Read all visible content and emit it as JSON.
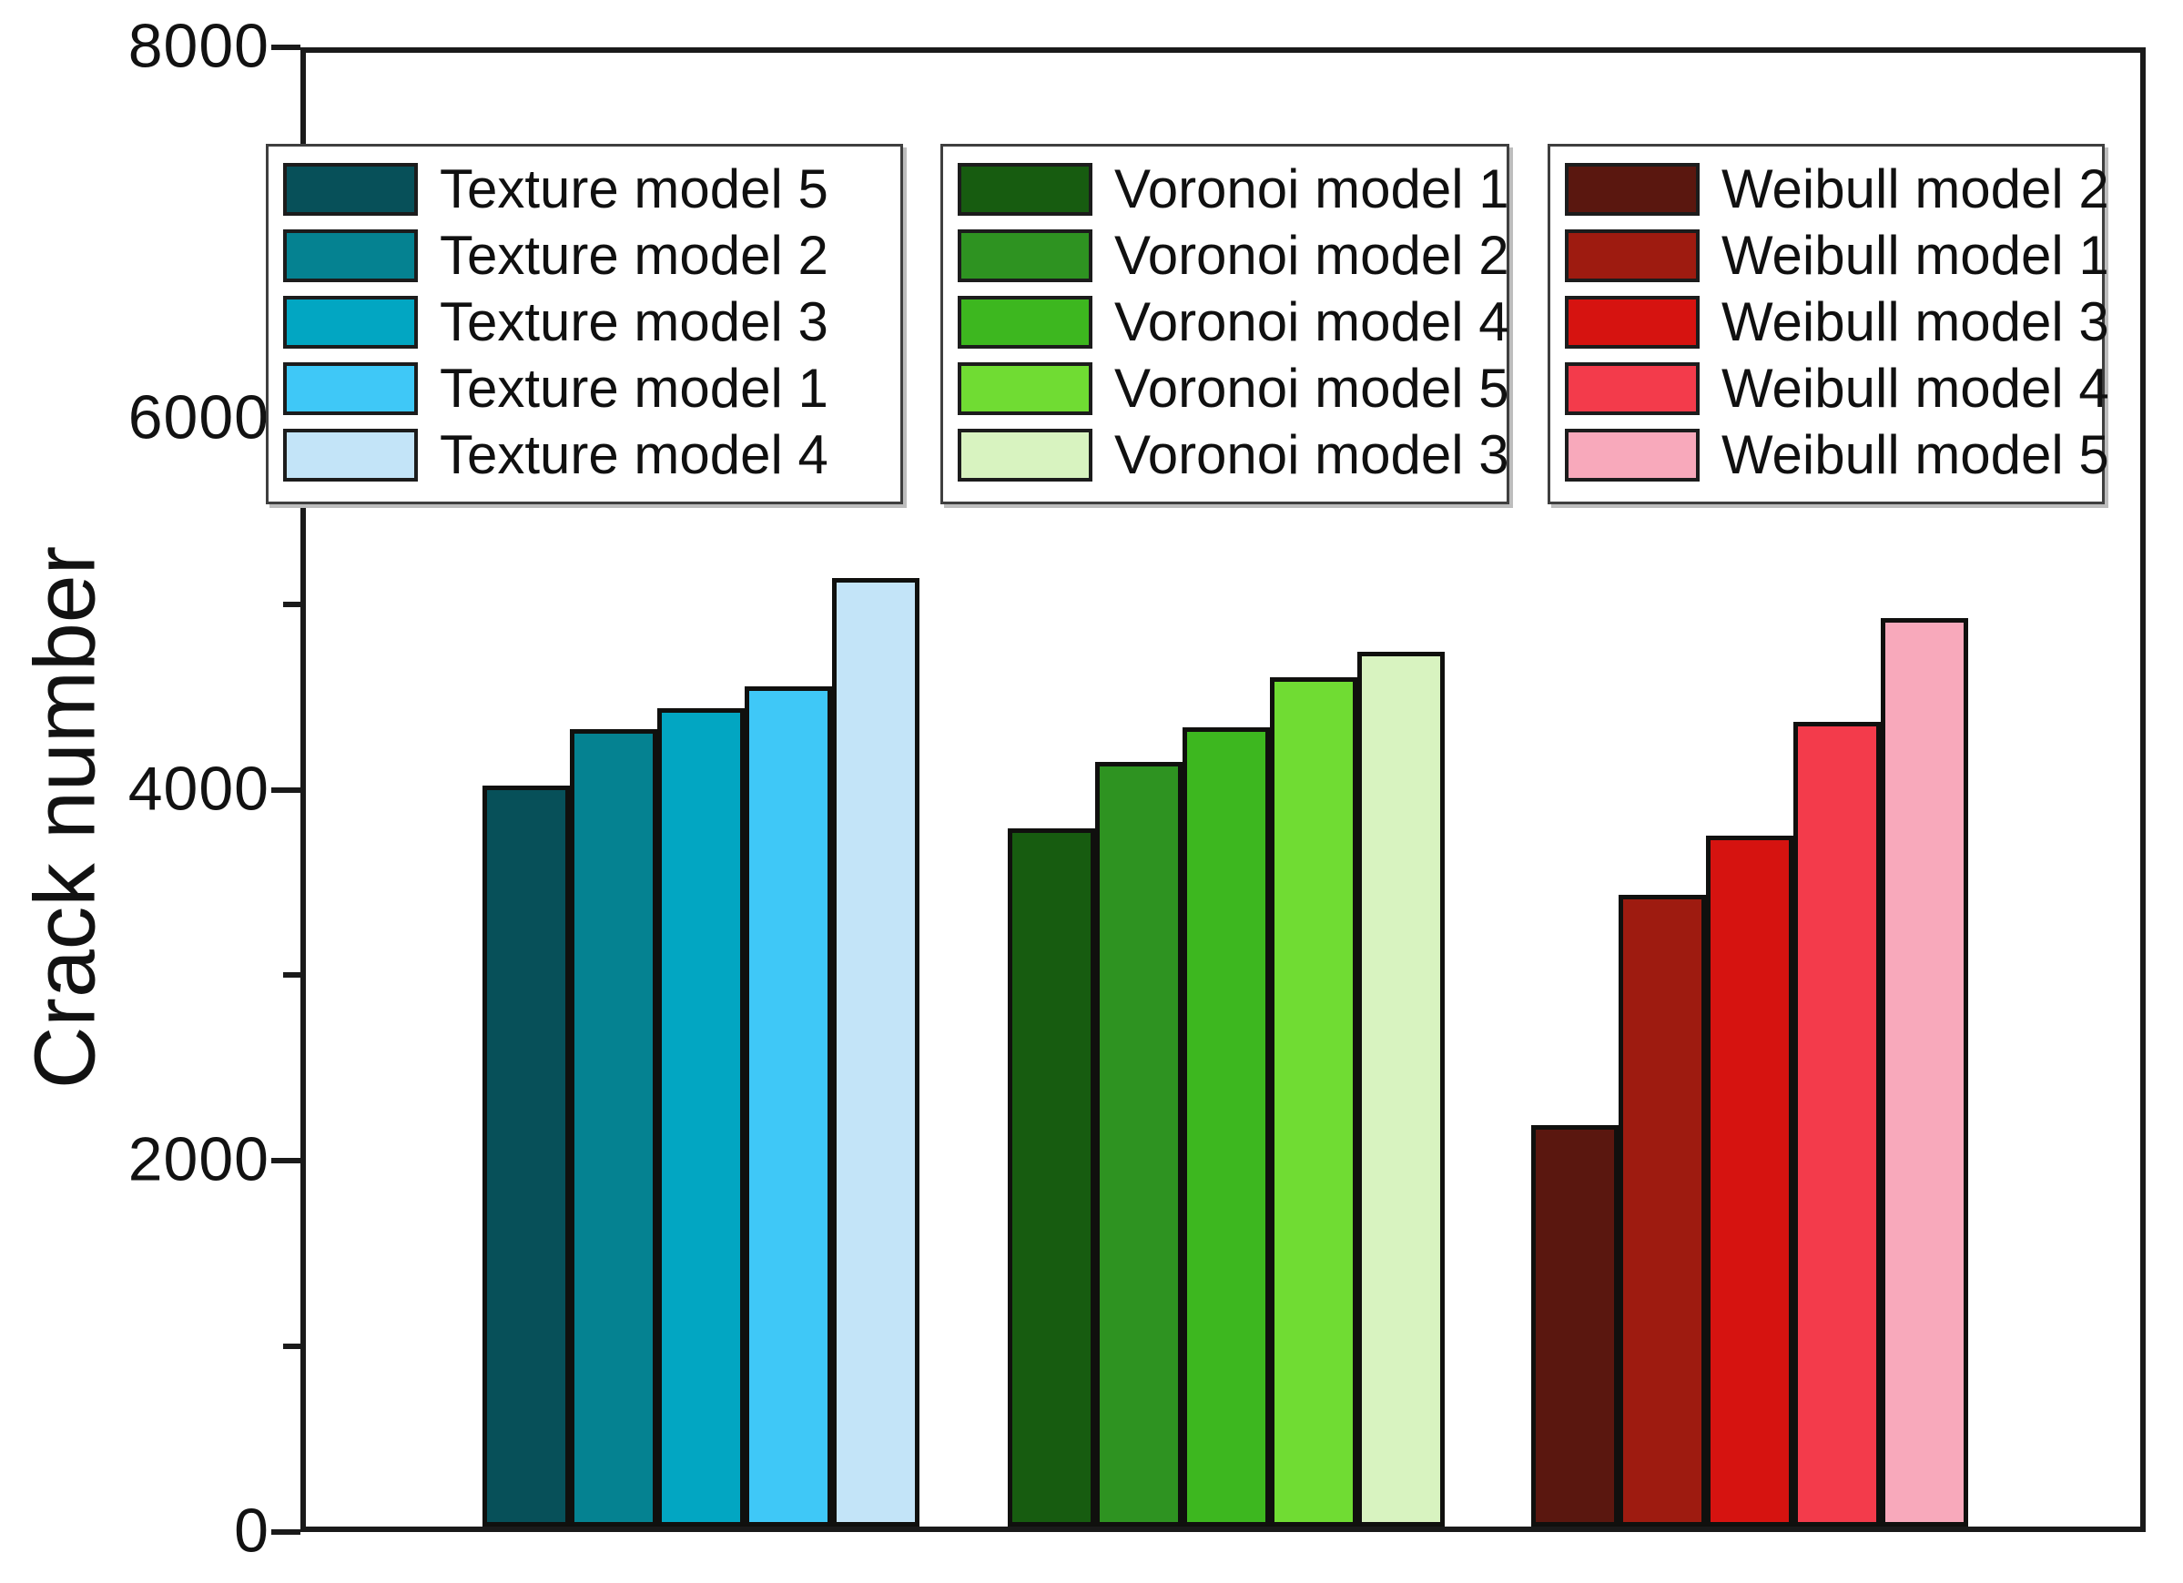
{
  "chart_data": {
    "type": "bar",
    "title": "",
    "ylabel": "Crack number",
    "xlabel": "",
    "ylim": [
      0,
      8000
    ],
    "y_major_ticks": [
      0,
      2000,
      4000,
      6000,
      8000
    ],
    "y_major_tick_labels": [
      "0",
      "2000",
      "4000",
      "6000",
      "8000"
    ],
    "y_minor_ticks": [
      1000,
      3000,
      5000,
      7000
    ],
    "grid": false,
    "legend_position": "three boxes, top inside plot",
    "axis_color": "#1a1a1a",
    "groups": [
      {
        "name": "Texture models",
        "bars": [
          {
            "label": "Texture model 5",
            "value": 4020,
            "color": "#075059"
          },
          {
            "label": "Texture model 2",
            "value": 4330,
            "color": "#058291"
          },
          {
            "label": "Texture model 3",
            "value": 4440,
            "color": "#02a6c2"
          },
          {
            "label": "Texture model 1",
            "value": 4560,
            "color": "#3fc8f7"
          },
          {
            "label": "Texture model 4",
            "value": 5150,
            "color": "#c3e4f8"
          }
        ]
      },
      {
        "name": "Voronoi models",
        "bars": [
          {
            "label": "Voronoi model 1",
            "value": 3790,
            "color": "#175c10"
          },
          {
            "label": "Voronoi model 2",
            "value": 4150,
            "color": "#2e9321"
          },
          {
            "label": "Voronoi model 4",
            "value": 4340,
            "color": "#3db71f"
          },
          {
            "label": "Voronoi model 5",
            "value": 4610,
            "color": "#70dc33"
          },
          {
            "label": "Voronoi model 3",
            "value": 4750,
            "color": "#d8f3c0"
          }
        ]
      },
      {
        "name": "Weibull models",
        "bars": [
          {
            "label": "Weibull model 2",
            "value": 2180,
            "color": "#5a170f"
          },
          {
            "label": "Weibull model 1",
            "value": 3430,
            "color": "#9e1b10"
          },
          {
            "label": "Weibull model 3",
            "value": 3750,
            "color": "#d61310"
          },
          {
            "label": "Weibull model 4",
            "value": 4370,
            "color": "#f33b4b"
          },
          {
            "label": "Weibull model 5",
            "value": 4930,
            "color": "#f8a9bb"
          }
        ]
      }
    ]
  }
}
